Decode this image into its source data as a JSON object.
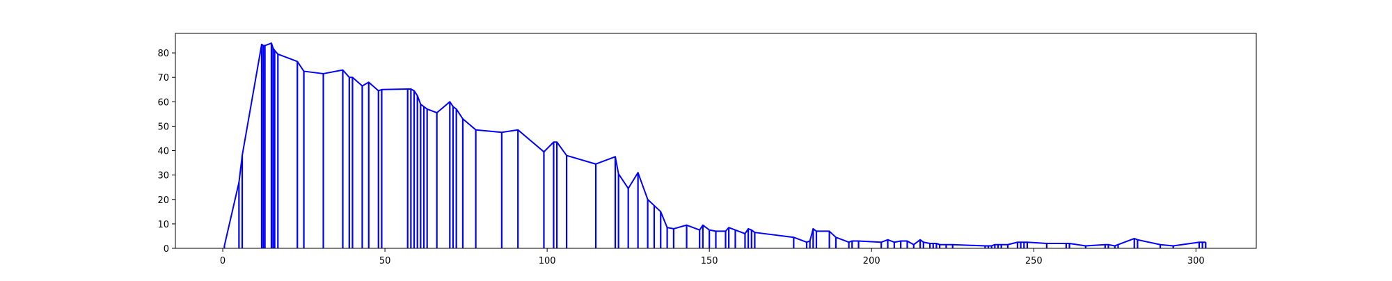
{
  "chart_data": {
    "type": "line",
    "title": "",
    "xlabel": "",
    "ylabel": "",
    "xlim": [
      -14.6,
      318.6
    ],
    "ylim": [
      0,
      88
    ],
    "xticks": [
      0,
      50,
      100,
      150,
      200,
      250,
      300
    ],
    "yticks": [
      0,
      10,
      20,
      30,
      40,
      50,
      60,
      70,
      80
    ],
    "xtick_labels": [
      "0",
      "50",
      "100",
      "150",
      "200",
      "250",
      "300"
    ],
    "ytick_labels": [
      "0",
      "10",
      "20",
      "30",
      "40",
      "50",
      "60",
      "70",
      "80"
    ],
    "grid": false,
    "legend": false,
    "color": "#0000ff",
    "series": [
      {
        "style": "stems-with-envelope",
        "x": [
          0.5,
          5,
          6,
          12,
          12.5,
          13,
          15,
          15.5,
          16,
          17,
          23,
          25,
          31,
          37,
          39,
          40,
          43,
          45,
          48,
          49,
          57,
          58,
          59,
          60,
          61,
          62,
          63,
          66,
          70,
          71,
          72,
          74,
          78,
          86,
          91,
          99,
          102,
          103,
          106,
          115,
          121,
          122,
          125,
          128,
          131,
          133,
          135,
          137,
          139,
          143,
          147,
          148,
          150,
          152,
          155,
          156,
          158,
          161,
          162,
          163,
          164,
          176,
          180,
          181,
          182,
          183,
          187,
          189,
          193,
          194,
          196,
          203,
          205,
          207,
          209,
          211,
          213,
          215,
          216,
          218,
          219,
          220,
          221,
          223,
          225,
          235,
          236,
          237,
          238,
          239,
          240,
          242,
          245,
          246,
          247,
          248,
          254,
          260,
          261,
          266,
          272,
          273,
          275,
          276,
          281,
          282,
          289,
          293,
          301,
          302,
          303
        ],
        "y": [
          1,
          27,
          38,
          83.5,
          83,
          83,
          84,
          82,
          81,
          79.5,
          76.5,
          72.5,
          71.5,
          73,
          70,
          70,
          66.5,
          68,
          64.5,
          65,
          65.2,
          65.2,
          64.5,
          62.5,
          59,
          58,
          57,
          55.5,
          60,
          58,
          57,
          53,
          48.5,
          47.5,
          48.5,
          39.5,
          43.5,
          43.5,
          38,
          34.5,
          37.5,
          30.5,
          24.5,
          31,
          20,
          17.5,
          15,
          8.5,
          8,
          9.5,
          7.5,
          9.5,
          7.5,
          7,
          7,
          8.5,
          7.5,
          6,
          8,
          7.5,
          6.5,
          4.5,
          2.5,
          3,
          8,
          7,
          7,
          4.5,
          2.5,
          3,
          3,
          2.5,
          3.5,
          2.5,
          3,
          3,
          1.5,
          3.5,
          2.5,
          2,
          2,
          2,
          1.5,
          1.5,
          1.5,
          1,
          1,
          1,
          1.5,
          1.5,
          1.5,
          1.5,
          2.5,
          2.5,
          2.5,
          2.5,
          2,
          2,
          2,
          1,
          1.5,
          1.5,
          1,
          1.5,
          4,
          3.5,
          1.5,
          1,
          2.5,
          2.5,
          2.5
        ]
      }
    ]
  }
}
